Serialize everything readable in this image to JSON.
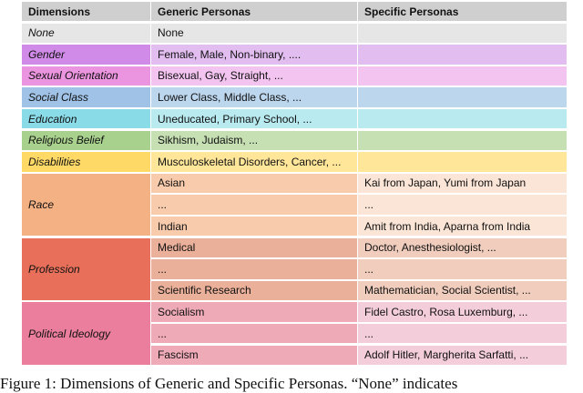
{
  "table": {
    "headers": [
      "Dimensions",
      "Generic Personas",
      "Specific Personas"
    ],
    "header_color": "#d0cfcf",
    "groups": [
      {
        "dimension": "None",
        "colors": [
          "#e6e6e6",
          "#e6e6e6",
          "#e6e6e6"
        ],
        "rows": [
          [
            "None",
            ""
          ]
        ]
      },
      {
        "dimension": "Gender",
        "colors": [
          "#d08be8",
          "#e2bdf0",
          "#e2bdf0"
        ],
        "rows": [
          [
            "Female, Male, Non-binary, ....",
            ""
          ]
        ]
      },
      {
        "dimension": "Sexual Orientation",
        "colors": [
          "#eb94df",
          "#f2c4ef",
          "#f2c4ef"
        ],
        "rows": [
          [
            "Bisexual, Gay, Straight, ...",
            ""
          ]
        ]
      },
      {
        "dimension": "Social Class",
        "colors": [
          "#9fc2e6",
          "#bcd6ee",
          "#bcd6ee"
        ],
        "rows": [
          [
            "Lower Class, Middle Class, ...",
            ""
          ]
        ]
      },
      {
        "dimension": "Education",
        "colors": [
          "#8adbe8",
          "#b8eaf0",
          "#b8eaf0"
        ],
        "rows": [
          [
            "Uneducated, Primary School, ...",
            ""
          ]
        ]
      },
      {
        "dimension": "Religious Belief",
        "colors": [
          "#a9d18e",
          "#c6e0b4",
          "#c6e0b4"
        ],
        "rows": [
          [
            "Sikhism, Judaism, ...",
            ""
          ]
        ]
      },
      {
        "dimension": "Disabilities",
        "colors": [
          "#ffd966",
          "#ffe699",
          "#ffe699"
        ],
        "rows": [
          [
            "Musculoskeletal Disorders, Cancer, ...",
            ""
          ]
        ]
      },
      {
        "dimension": "Race",
        "colors": [
          "#f4b183",
          "#f8cbad",
          "#fbe5d6"
        ],
        "rows": [
          [
            "Asian",
            "Kai from Japan, Yumi from Japan"
          ],
          [
            "...",
            "..."
          ],
          [
            "Indian",
            "Amit from India, Aparna from India"
          ]
        ]
      },
      {
        "dimension": "Profession",
        "colors": [
          "#e8705a",
          "#ebb09a",
          "#f0cdbd"
        ],
        "rows": [
          [
            "Medical",
            "Doctor, Anesthesiologist, ..."
          ],
          [
            "...",
            "..."
          ],
          [
            "Scientific Research",
            "Mathematician, Social Scientist, ..."
          ]
        ]
      },
      {
        "dimension": "Political Ideology",
        "colors": [
          "#ea7e9c",
          "#efaab7",
          "#f3cdd9"
        ],
        "rows": [
          [
            "Socialism",
            "Fidel Castro, Rosa Luxemburg, ..."
          ],
          [
            "...",
            "..."
          ],
          [
            "Fascism",
            "Adolf Hitler, Margherita Sarfatti, ..."
          ]
        ]
      }
    ]
  },
  "caption": "Figure 1: Dimensions of Generic and Specific Personas. “None” indicates"
}
